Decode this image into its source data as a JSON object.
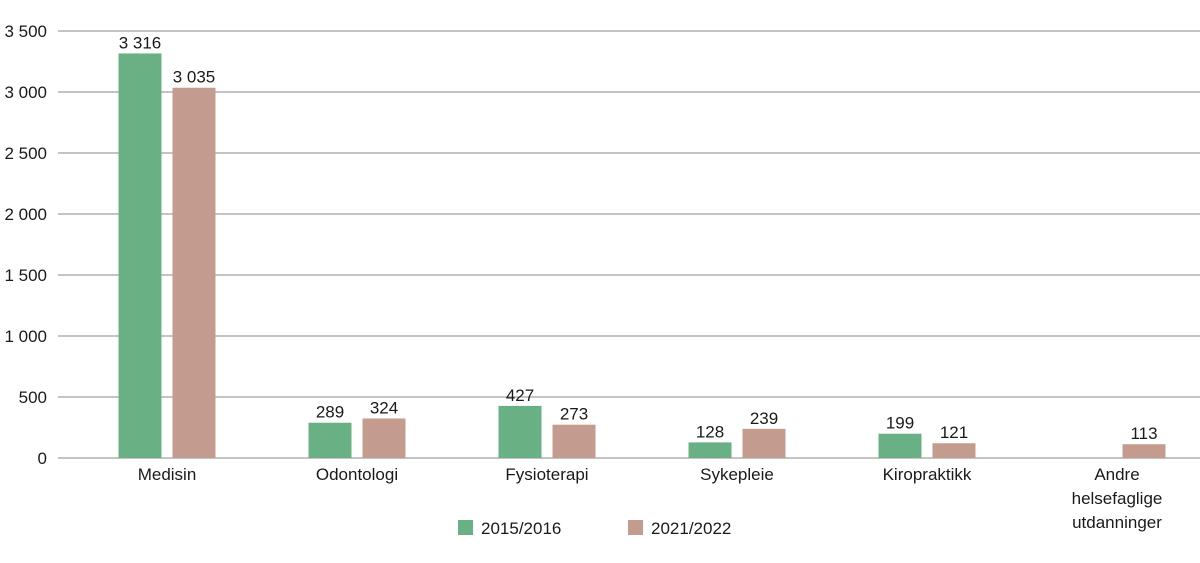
{
  "chart_data": {
    "type": "bar",
    "title": "",
    "xlabel": "",
    "ylabel": "",
    "ylim": [
      0,
      3500
    ],
    "yticks": [
      0,
      500,
      1000,
      1500,
      2000,
      2500,
      3000,
      3500
    ],
    "ytick_labels": [
      "0",
      "500",
      "1 000",
      "1 500",
      "2 000",
      "2 500",
      "3 000",
      "3 500"
    ],
    "grid": true,
    "legend_position": "bottom",
    "categories": [
      [
        "Medisin"
      ],
      [
        "Odontologi"
      ],
      [
        "Fysioterapi"
      ],
      [
        "Sykepleie"
      ],
      [
        "Kiropraktikk"
      ],
      [
        "Andre",
        "helsefaglige",
        "utdanninger"
      ]
    ],
    "series": [
      {
        "name": "2015/2016",
        "color": "#69b084",
        "values": [
          3316,
          289,
          427,
          128,
          199,
          null
        ],
        "labels": [
          "3 316",
          "289",
          "427",
          "128",
          "199",
          ""
        ]
      },
      {
        "name": "2021/2022",
        "color": "#c49c8f",
        "values": [
          3035,
          324,
          273,
          239,
          121,
          113
        ],
        "labels": [
          "3 035",
          "324",
          "273",
          "239",
          "121",
          "113"
        ]
      }
    ]
  }
}
